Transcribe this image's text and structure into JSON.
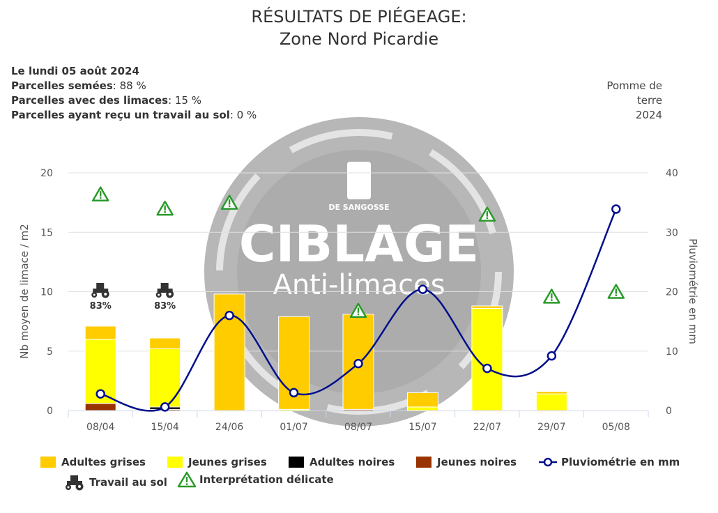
{
  "header": {
    "title_line1": "RÉSULTATS DE PIÉGEAGE:",
    "title_line2": "Zone Nord Picardie"
  },
  "info": {
    "date": "Le lundi 05 août 2024",
    "sown_label": "Parcelles semées",
    "sown_value": ": 88 %",
    "slugs_label": "Parcelles avec des limaces",
    "slugs_value": ": 15 %",
    "tillage_label": "Parcelles ayant reçu un travail au sol",
    "tillage_value": ": 0 %"
  },
  "crop": {
    "line1": "Pomme de",
    "line2": "terre",
    "line3": "2024"
  },
  "watermark": {
    "brand": "DE SANGOSSE",
    "word1": "CIBLAGE",
    "word2": "Anti-limaces"
  },
  "chart_data": {
    "type": "bar",
    "categories": [
      "08/04",
      "15/04",
      "24/06",
      "01/07",
      "08/07",
      "15/07",
      "22/07",
      "29/07",
      "05/08"
    ],
    "ylabel": "Nb moyen de limace / m2",
    "y2label": "Pluviométrie en mm",
    "ylim": [
      0,
      20
    ],
    "y2lim": [
      0,
      40
    ],
    "yticks": [
      0,
      5,
      10,
      15,
      20
    ],
    "y2ticks": [
      0,
      10,
      20,
      30,
      40
    ],
    "grid": true,
    "legend_position": "bottom",
    "series": [
      {
        "name": "Jeunes noires",
        "color": "#993300",
        "values": [
          0.6,
          0.1,
          0,
          0,
          0.1,
          0,
          0,
          0,
          0
        ]
      },
      {
        "name": "Adultes noires",
        "color": "#000000",
        "values": [
          0,
          0.2,
          0,
          0,
          0,
          0,
          0,
          0,
          0
        ]
      },
      {
        "name": "Jeunes grises",
        "color": "#ffff00",
        "values": [
          5.4,
          4.9,
          0,
          0.1,
          0,
          0.3,
          8.6,
          1.4,
          0
        ]
      },
      {
        "name": "Adultes grises",
        "color": "#ffcc00",
        "values": [
          1.1,
          0.9,
          9.8,
          7.8,
          8.0,
          1.2,
          0.2,
          0.2,
          0
        ]
      }
    ],
    "rain": {
      "name": "Pluviométrie en mm",
      "color": "#000f8c",
      "values": [
        2.8,
        0.6,
        16.0,
        3.0,
        7.9,
        20.4,
        7.1,
        9.2,
        33.9
      ]
    },
    "warnings": {
      "name": "Interprétation délicate",
      "y": [
        18.2,
        17.0,
        17.5,
        null,
        8.4,
        null,
        16.5,
        9.6,
        10.0
      ]
    },
    "tillage": {
      "name": "Travail au sol",
      "labels": [
        "83%",
        "83%",
        "",
        "",
        "",
        "",
        "",
        "",
        ""
      ]
    }
  },
  "colors": {
    "warning": "#2a9a2a",
    "grid": "#e0e0e0"
  },
  "icons": {
    "warning": "warning-triangle-icon",
    "tractor": "tractor-icon"
  }
}
